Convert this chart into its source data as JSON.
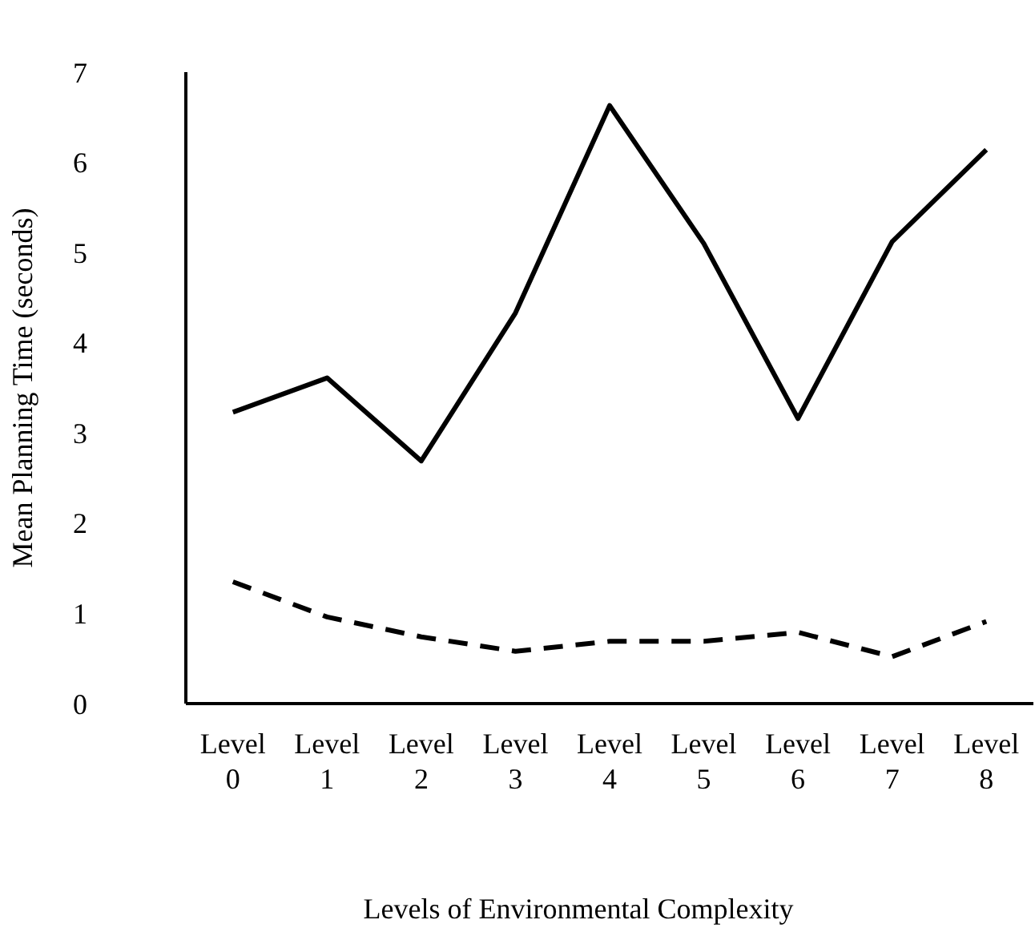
{
  "chart_data": {
    "type": "line",
    "xlabel": "Levels of Environmental Complexity",
    "ylabel": "Mean Planning Time (seconds)",
    "categories": [
      "Level 0",
      "Level 1",
      "Level 2",
      "Level 3",
      "Level 4",
      "Level 5",
      "Level 6",
      "Level 7",
      "Level 8"
    ],
    "ylim": [
      0,
      7
    ],
    "yticks": [
      0,
      1,
      2,
      3,
      4,
      5,
      6,
      7
    ],
    "grid": false,
    "marker": "none",
    "series": [
      {
        "color": "#000000",
        "line_style": "solid",
        "values": [
          3.23,
          3.61,
          2.69,
          4.33,
          6.63,
          5.1,
          3.16,
          5.12,
          6.14
        ]
      },
      {
        "color": "#000000",
        "line_style": "dashed",
        "values": [
          1.35,
          0.96,
          0.74,
          0.58,
          0.69,
          0.69,
          0.79,
          0.52,
          0.91
        ]
      }
    ]
  }
}
